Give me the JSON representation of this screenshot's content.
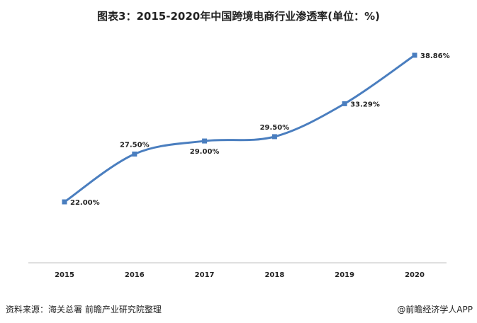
{
  "title": "图表3：2015-2020年中国跨境电商行业渗透率(单位：%)",
  "source": "资料来源：海关总署 前瞻产业研究院整理",
  "brand": "@前瞻经济学人APP",
  "colors": {
    "line": "#4a7ebf",
    "axis": "#bfbfbf"
  },
  "chart_data": {
    "type": "line",
    "categories": [
      "2015",
      "2016",
      "2017",
      "2018",
      "2019",
      "2020"
    ],
    "series": [
      {
        "values": [
          22.0,
          27.5,
          29.0,
          29.5,
          33.29,
          38.86
        ],
        "labels": [
          "22.00%",
          "27.50%",
          "29.00%",
          "29.50%",
          "33.29%",
          "38.86%"
        ]
      }
    ],
    "title": "图表3：2015-2020年中国跨境电商行业渗透率(单位：%)",
    "xlabel": "",
    "ylabel": "",
    "grid": false,
    "smooth": true
  }
}
